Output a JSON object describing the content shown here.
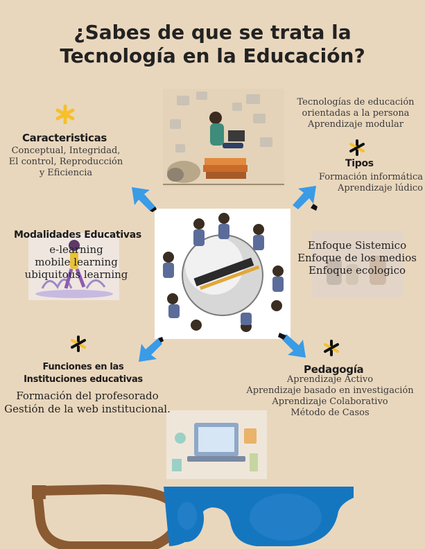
{
  "title": {
    "line1": "¿Sabes de que se trata la",
    "line2": "Tecnología en la Educación?"
  },
  "caracteristicas": {
    "heading": "Caracteristicas",
    "lines": [
      "Conceptual, Integridad,",
      "El control, Reproducción",
      "y Eficiencia"
    ]
  },
  "persona": {
    "lines": [
      "Tecnologías de educación",
      "orientadas a la persona",
      "Aprendizaje modular"
    ]
  },
  "tipos": {
    "heading": "Tipos",
    "lines": [
      "Formación informática",
      "Aprendizaje lúdico"
    ]
  },
  "modalidades": {
    "heading": "Modalidades Educativas",
    "lines": [
      "e-learning",
      "mobile learning",
      "ubiquitous learning"
    ]
  },
  "enfoques": {
    "lines": [
      "Enfoque Sistemico",
      "Enfoque de los medios",
      "Enfoque ecologico"
    ]
  },
  "funciones": {
    "heading_line1": "Funciones en las",
    "heading_line2": "Instituciones educativas",
    "lines": [
      "Formación del profesorado",
      "Gestión de la web institucional."
    ]
  },
  "pedagogia": {
    "heading": "Pedagogía",
    "lines": [
      "Aprendizaje Activo",
      "Aprendizaje basado en investigación",
      "Aprendizaje Colaborativo",
      "Método de Casos"
    ]
  },
  "colors": {
    "background": "#e9d7bd",
    "arrow": "#3a9be6",
    "star": "#f6c02b",
    "glasses_brown": "#8a5a32",
    "glasses_blue": "#1576c0"
  }
}
